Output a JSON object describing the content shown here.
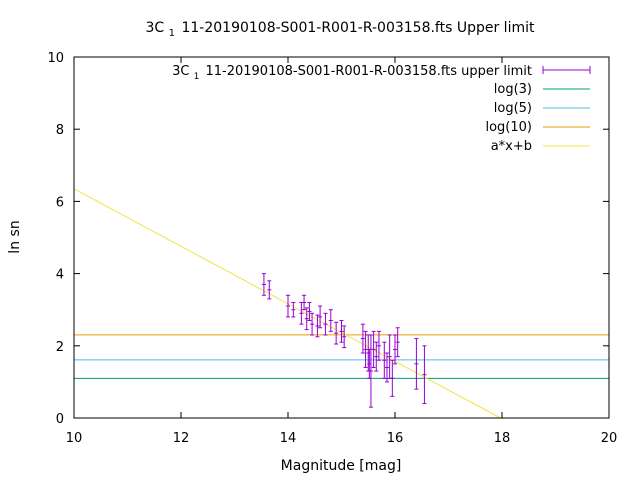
{
  "chart_data": {
    "type": "scatter",
    "title": "3C 11-20190108-S001-R001-R-003158.fts Upper limit",
    "title_main": "3C",
    "title_sub": "1",
    "title_rest": "11-20190108-S001-R001-R-003158.fts Upper limit",
    "xlabel": "Magnitude [mag]",
    "ylabel": "ln sn",
    "xlim": [
      10,
      20
    ],
    "ylim": [
      0,
      10
    ],
    "xticks": [
      10,
      12,
      14,
      16,
      18,
      20
    ],
    "yticks": [
      0,
      2,
      4,
      6,
      8,
      10
    ],
    "legend_position": "top-right",
    "series": [
      {
        "name": "3C 11-20190108-S001-R001-R-003158.fts upper limit",
        "name_main": "3C",
        "name_sub": "1",
        "name_rest": "11-20190108-S001-R001-R-003158.fts upper limit",
        "kind": "errorbars",
        "color": "#9400d3",
        "points": [
          {
            "x": 13.55,
            "y": 3.7,
            "err": 0.3
          },
          {
            "x": 13.65,
            "y": 3.55,
            "err": 0.25
          },
          {
            "x": 14.0,
            "y": 3.1,
            "err": 0.3
          },
          {
            "x": 14.1,
            "y": 3.0,
            "err": 0.2
          },
          {
            "x": 14.25,
            "y": 2.9,
            "err": 0.3
          },
          {
            "x": 14.3,
            "y": 3.2,
            "err": 0.2
          },
          {
            "x": 14.35,
            "y": 2.75,
            "err": 0.3
          },
          {
            "x": 14.4,
            "y": 2.95,
            "err": 0.25
          },
          {
            "x": 14.45,
            "y": 2.6,
            "err": 0.3
          },
          {
            "x": 14.55,
            "y": 2.55,
            "err": 0.3
          },
          {
            "x": 14.6,
            "y": 2.8,
            "err": 0.3
          },
          {
            "x": 14.7,
            "y": 2.6,
            "err": 0.3
          },
          {
            "x": 14.8,
            "y": 2.7,
            "err": 0.3
          },
          {
            "x": 14.9,
            "y": 2.35,
            "err": 0.3
          },
          {
            "x": 15.0,
            "y": 2.4,
            "err": 0.3
          },
          {
            "x": 15.05,
            "y": 2.25,
            "err": 0.3
          },
          {
            "x": 15.4,
            "y": 2.2,
            "err": 0.4
          },
          {
            "x": 15.45,
            "y": 1.9,
            "err": 0.5
          },
          {
            "x": 15.5,
            "y": 1.8,
            "err": 0.5
          },
          {
            "x": 15.52,
            "y": 1.5,
            "err": 0.4
          },
          {
            "x": 15.55,
            "y": 1.3,
            "err": 1.0
          },
          {
            "x": 15.6,
            "y": 1.9,
            "err": 0.5
          },
          {
            "x": 15.65,
            "y": 1.7,
            "err": 0.4
          },
          {
            "x": 15.7,
            "y": 2.0,
            "err": 0.4
          },
          {
            "x": 15.8,
            "y": 1.6,
            "err": 0.5
          },
          {
            "x": 15.85,
            "y": 1.4,
            "err": 0.4
          },
          {
            "x": 15.9,
            "y": 1.7,
            "err": 0.6
          },
          {
            "x": 15.95,
            "y": 1.1,
            "err": 0.5
          },
          {
            "x": 16.0,
            "y": 1.9,
            "err": 0.4
          },
          {
            "x": 16.05,
            "y": 2.1,
            "err": 0.4
          },
          {
            "x": 16.4,
            "y": 1.5,
            "err": 0.7
          },
          {
            "x": 16.55,
            "y": 1.2,
            "err": 0.8
          }
        ]
      },
      {
        "name": "log(3)",
        "kind": "hline",
        "y": 1.0986,
        "color": "#009e73"
      },
      {
        "name": "log(5)",
        "kind": "hline",
        "y": 1.6094,
        "color": "#56b4e9"
      },
      {
        "name": "log(10)",
        "kind": "hline",
        "y": 2.3026,
        "color": "#e69f00"
      },
      {
        "name": "a*x+b",
        "kind": "line",
        "points": [
          [
            10,
            6.35
          ],
          [
            17.97,
            0
          ]
        ],
        "color": "#f0e442"
      }
    ]
  }
}
